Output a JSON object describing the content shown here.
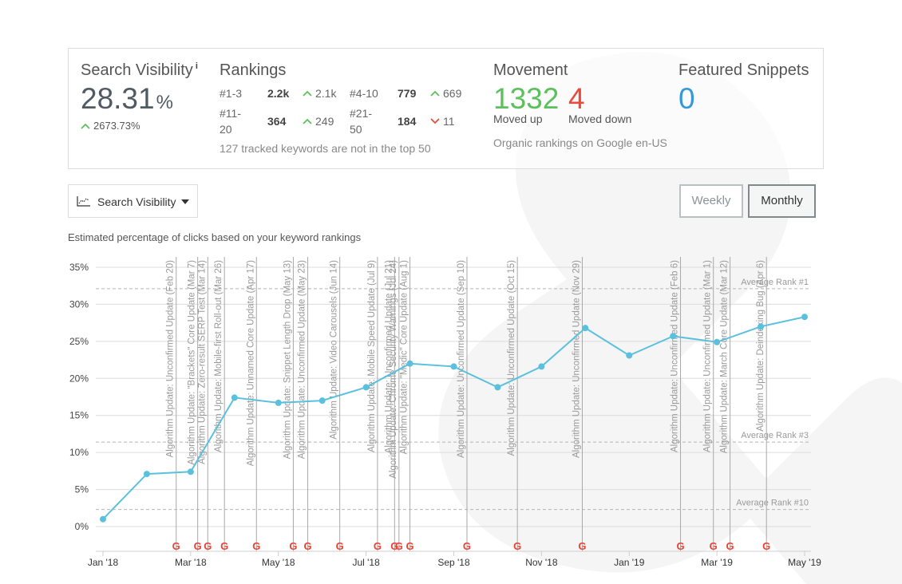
{
  "search_visibility": {
    "title": "Search Visibility",
    "info_icon": "i",
    "value": "28.31",
    "unit": "%",
    "change": "2673.73%"
  },
  "rankings": {
    "title": "Rankings",
    "rows": [
      {
        "label": "#1-3",
        "value": "2.2k",
        "change": "2.1k",
        "direction": "up"
      },
      {
        "label": "#4-10",
        "value": "779",
        "change": "669",
        "direction": "up"
      },
      {
        "label": "#11-20",
        "value": "364",
        "change": "249",
        "direction": "up"
      },
      {
        "label": "#21-50",
        "value": "184",
        "change": "11",
        "direction": "down"
      }
    ],
    "note": "127 tracked keywords are not in the top 50"
  },
  "movement": {
    "title": "Movement",
    "up_value": "1332",
    "up_label": "Moved up",
    "down_value": "4",
    "down_label": "Moved down",
    "note": "Organic rankings on Google en-US"
  },
  "featured_snippets": {
    "title": "Featured Snippets",
    "value": "0"
  },
  "metric_dropdown": {
    "label": "Search Visibility",
    "icon": "line-chart-icon"
  },
  "period_toggle": {
    "weekly": "Weekly",
    "monthly": "Monthly",
    "selected": "Monthly"
  },
  "chart_caption": "Estimated percentage of clicks based on your keyword rankings",
  "colors": {
    "line": "#5bc0de",
    "up": "#5cc05c",
    "down": "#e74c3c",
    "featured": "#3498db",
    "google_red": "#ea4335",
    "google_blue": "#4285f4",
    "google_yellow": "#fbbc05",
    "google_green": "#34a853"
  },
  "chart_data": {
    "type": "line",
    "y_ticks": [
      "0%",
      "5%",
      "10%",
      "15%",
      "20%",
      "25%",
      "30%",
      "35%"
    ],
    "ylim": [
      0,
      35
    ],
    "x_ticks": [
      {
        "label": "Jan '18",
        "t": 0
      },
      {
        "label": "Mar '18",
        "t": 2
      },
      {
        "label": "May '18",
        "t": 4
      },
      {
        "label": "Jul '18",
        "t": 6
      },
      {
        "label": "Sep '18",
        "t": 8
      },
      {
        "label": "Nov '18",
        "t": 10
      },
      {
        "label": "Jan '19",
        "t": 12
      },
      {
        "label": "Mar '19",
        "t": 14
      },
      {
        "label": "May '19",
        "t": 16
      }
    ],
    "series": [
      {
        "points": [
          {
            "t": 0,
            "v": 1.0
          },
          {
            "t": 1,
            "v": 7.1
          },
          {
            "t": 2,
            "v": 7.4
          },
          {
            "t": 3,
            "v": 17.4
          },
          {
            "t": 4,
            "v": 16.7
          },
          {
            "t": 5,
            "v": 17.0
          },
          {
            "t": 6,
            "v": 18.8
          },
          {
            "t": 7,
            "v": 22.0
          },
          {
            "t": 8,
            "v": 21.6
          },
          {
            "t": 9,
            "v": 18.8
          },
          {
            "t": 10,
            "v": 21.6
          },
          {
            "t": 11,
            "v": 26.8
          },
          {
            "t": 12,
            "v": 23.1
          },
          {
            "t": 13,
            "v": 25.7
          },
          {
            "t": 14,
            "v": 24.9
          },
          {
            "t": 15,
            "v": 27.0
          },
          {
            "t": 16,
            "v": 28.3
          }
        ]
      }
    ],
    "reference_lines": [
      {
        "label": "Average Rank #1",
        "v": 32.1
      },
      {
        "label": "Average Rank #3",
        "v": 11.4
      },
      {
        "label": "Average Rank #10",
        "v": 2.3
      }
    ],
    "annotations": [
      {
        "label": "Algorithm Update: Unconfirmed Update (Feb 20)",
        "t": 1.67
      },
      {
        "label": "Algorithm Update: \"Brackets\" Core Update (Mar 7)",
        "t": 2.16
      },
      {
        "label": "Algorithm Update: Zero-result SERP Test (Mar 14)",
        "t": 2.39
      },
      {
        "label": "Algorithm Update: Mobile-first Roll-out (Mar 26)",
        "t": 2.77
      },
      {
        "label": "Algorithm Update: Unnamed Core Update (Apr 17)",
        "t": 3.5
      },
      {
        "label": "Algorithm Update: Snippet Length Drop (May 13)",
        "t": 4.34
      },
      {
        "label": "Algorithm Update: Unconfirmed Update (May 23)",
        "t": 4.67
      },
      {
        "label": "Algorithm Update: Video Carousels (Jun 14)",
        "t": 5.4
      },
      {
        "label": "Algorithm Update: Mobile Speed Update (Jul 9)",
        "t": 6.26
      },
      {
        "label": "Algorithm Update: Unconfirmed Update (Jul 21)",
        "t": 6.65
      },
      {
        "label": "Algorithm Update: Chrome Security Warnings (Jul 24)",
        "t": 6.75
      },
      {
        "label": "Algorithm Update: \"Medic\" Core Update (Aug 1)",
        "t": 7.0
      },
      {
        "label": "Algorithm Update: Unconfirmed Update (Sep 10)",
        "t": 8.3
      },
      {
        "label": "Algorithm Update: Unconfirmed Update (Oct 15)",
        "t": 9.45
      },
      {
        "label": "Algorithm Update: Unconfirmed Update (Nov 29)",
        "t": 10.93
      },
      {
        "label": "Algorithm Update: Unconfirmed Update (Feb 6)",
        "t": 13.17
      },
      {
        "label": "Algorithm Update: Unconfirmed Update (Mar 1)",
        "t": 13.92
      },
      {
        "label": "Algorithm Update: March Core Update (Mar 12)",
        "t": 14.3
      },
      {
        "label": "Algorithm Update: Deindexing Bug (Apr 6)",
        "t": 15.13
      }
    ],
    "google_marker": "G",
    "grid": true
  }
}
